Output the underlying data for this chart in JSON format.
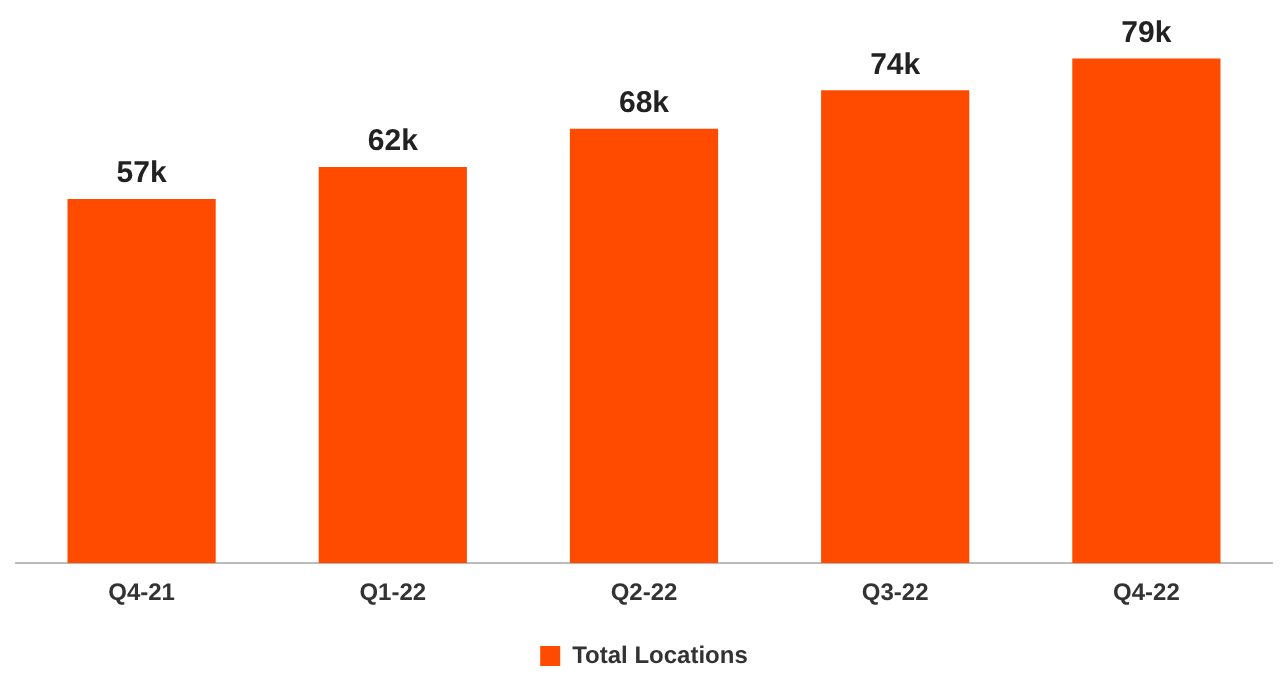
{
  "chart_data": {
    "type": "bar",
    "categories": [
      "Q4-21",
      "Q1-22",
      "Q2-22",
      "Q3-22",
      "Q4-22"
    ],
    "series": [
      {
        "name": "Total Locations",
        "color": "#ff4b00",
        "values": [
          57,
          62,
          68,
          74,
          79
        ],
        "value_labels": [
          "57k",
          "62k",
          "68k",
          "74k",
          "79k"
        ]
      }
    ],
    "tick_labels": "x",
    "grid": false,
    "legend": "bottom"
  }
}
